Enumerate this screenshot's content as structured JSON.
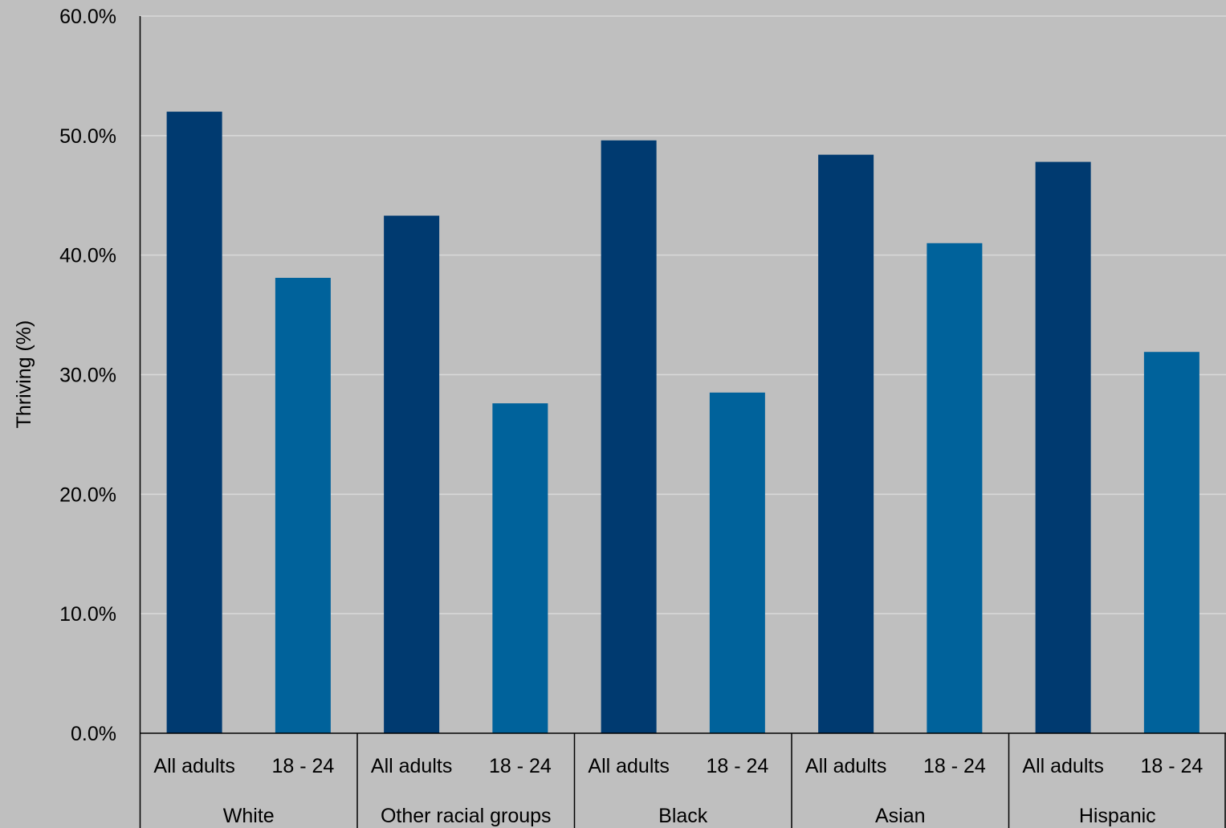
{
  "chart_data": {
    "type": "bar",
    "title": "",
    "ylabel": "Thriving (%)",
    "xlabel": "",
    "ylim": [
      0,
      60
    ],
    "yticks": [
      "0.0%",
      "10.0%",
      "20.0%",
      "30.0%",
      "40.0%",
      "50.0%",
      "60.0%"
    ],
    "ytick_values": [
      0,
      10,
      20,
      30,
      40,
      50,
      60
    ],
    "grid": "horizontal",
    "legend": "none",
    "groups": [
      "White",
      "Other racial groups",
      "Black",
      "Asian",
      "Hispanic"
    ],
    "categories": [
      "All adults",
      "18 - 24"
    ],
    "bars": [
      {
        "group": "White",
        "category": "All adults",
        "value": 52.0
      },
      {
        "group": "White",
        "category": "18 - 24",
        "value": 38.1
      },
      {
        "group": "Other racial groups",
        "category": "All adults",
        "value": 43.3
      },
      {
        "group": "Other racial groups",
        "category": "18 - 24",
        "value": 27.6
      },
      {
        "group": "Black",
        "category": "All adults",
        "value": 49.6
      },
      {
        "group": "Black",
        "category": "18 - 24",
        "value": 28.5
      },
      {
        "group": "Asian",
        "category": "All adults",
        "value": 48.4
      },
      {
        "group": "Asian",
        "category": "18 - 24",
        "value": 41.0
      },
      {
        "group": "Hispanic",
        "category": "All adults",
        "value": 47.8
      },
      {
        "group": "Hispanic",
        "category": "18 - 24",
        "value": 31.9
      }
    ],
    "colors": {
      "All adults": "#003a70",
      "18 - 24": "#00629b",
      "background": "#bfbfbf",
      "gridline": "#d9d9d9",
      "axis": "#000000"
    }
  }
}
